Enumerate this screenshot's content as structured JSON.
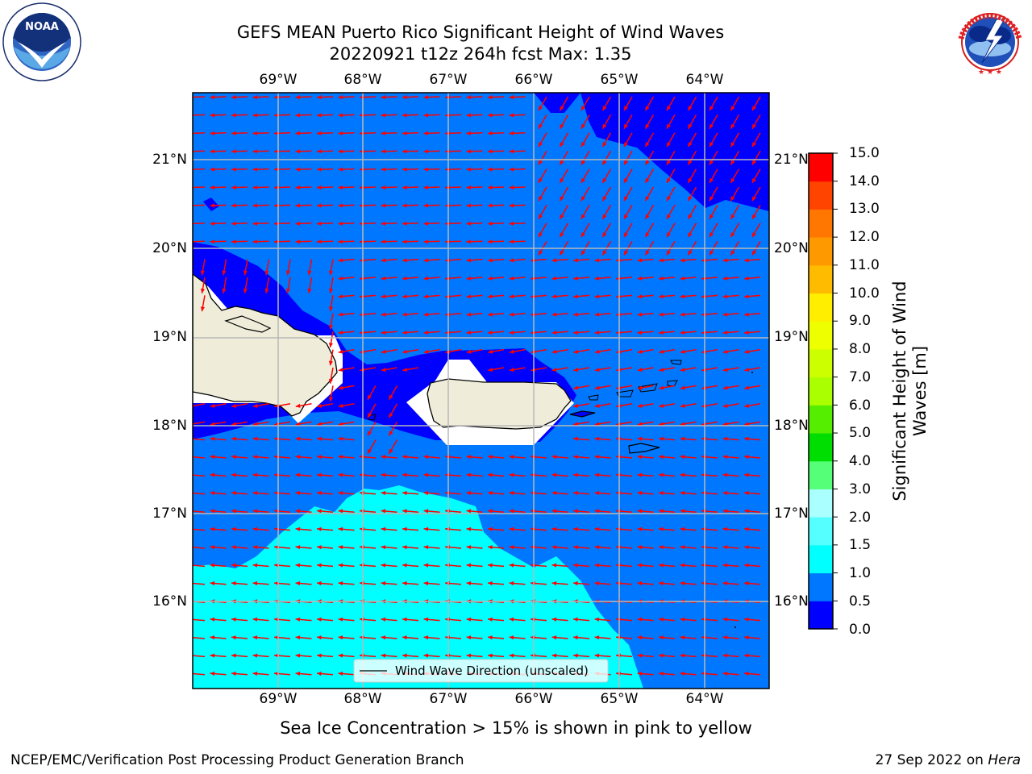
{
  "header": {
    "title_line1": "GEFS MEAN Puerto Rico Significant Height of Wind Waves",
    "title_line2": "20220921 t12z 264h fcst   Max: 1.35"
  },
  "map": {
    "lon_labels": [
      "69°W",
      "68°W",
      "67°W",
      "66°W",
      "65°W",
      "64°W"
    ],
    "lat_labels": [
      "21°N",
      "20°N",
      "19°N",
      "18°N",
      "17°N",
      "16°N"
    ],
    "legend_label": "Wind Wave Direction (unscaled)",
    "arrow_color": "#ff0000"
  },
  "colorbar": {
    "title": "Significant Height of Wind Waves [m]",
    "levels": [
      "15.0",
      "14.0",
      "13.0",
      "12.0",
      "11.0",
      "10.0",
      "9.0",
      "8.0",
      "7.0",
      "6.0",
      "5.0",
      "4.0",
      "3.0",
      "2.0",
      "1.5",
      "1.0",
      "0.5",
      "0.0"
    ],
    "colors": [
      "#0000ff",
      "#0077ff",
      "#00ffff",
      "#55ffff",
      "#aaffff",
      "#55ff77",
      "#00dd00",
      "#55ee00",
      "#aaff00",
      "#ccff00",
      "#eeff00",
      "#ffee00",
      "#ffbb00",
      "#ff9900",
      "#ff7700",
      "#ff4400",
      "#ff0000"
    ]
  },
  "logos": {
    "left_name": "NOAA",
    "left_ring_text": "NATIONAL OCEANIC AND ATMOSPHERIC ADMINISTRATION · U.S. DEPARTMENT OF COMMERCE",
    "right_ring_text": "NATIONAL WEATHER SERVICE"
  },
  "notes": {
    "sea_ice": "Sea Ice Concentration > 15% is shown in pink to yellow"
  },
  "footer": {
    "left": "NCEP/EMC/Verification Post Processing Product Generation Branch",
    "date": "27 Sep 2022 on ",
    "host": "Hera"
  }
}
